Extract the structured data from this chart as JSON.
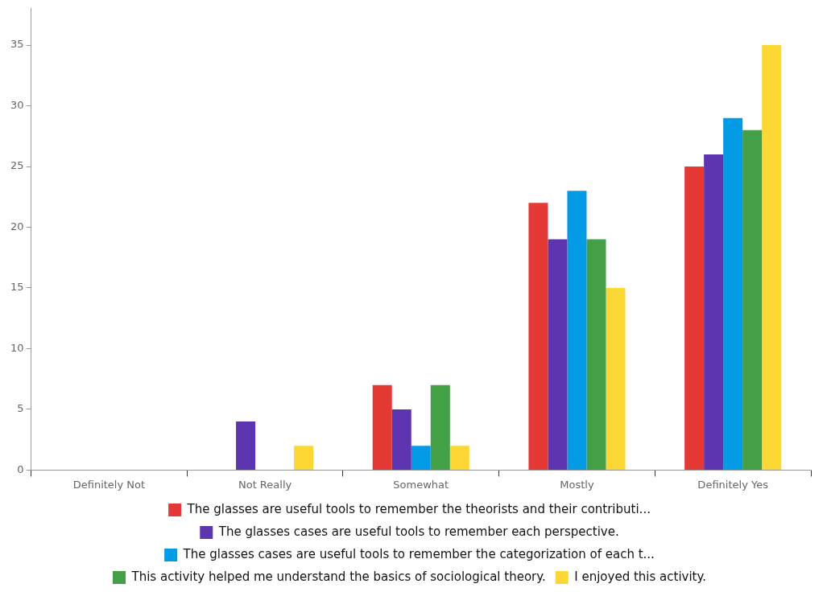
{
  "chart_data": {
    "type": "bar",
    "categories": [
      "Definitely Not",
      "Not Really",
      "Somewhat",
      "Mostly",
      "Definitely Yes"
    ],
    "series": [
      {
        "name": "The glasses are useful tools to remember the theorists and their contributi...",
        "color": "#e53935",
        "values": [
          0,
          0,
          7,
          22,
          25
        ]
      },
      {
        "name": "The glasses cases are useful tools to remember each perspective.",
        "color": "#5e35b1",
        "values": [
          0,
          4,
          5,
          19,
          26
        ]
      },
      {
        "name": "The glasses cases are useful tools to remember the categorization of each t...",
        "color": "#039be5",
        "values": [
          0,
          0,
          2,
          23,
          29
        ]
      },
      {
        "name": "This activity helped me understand the basics of sociological theory.",
        "color": "#43a047",
        "values": [
          0,
          0,
          7,
          19,
          28
        ]
      },
      {
        "name": "I enjoyed this activity.",
        "color": "#fdd835",
        "values": [
          0,
          2,
          2,
          15,
          35
        ]
      }
    ],
    "ylim": [
      0,
      38
    ],
    "yticks": [
      0,
      5,
      10,
      15,
      20,
      25,
      30,
      35
    ],
    "grid": false,
    "legend": "bottom"
  }
}
